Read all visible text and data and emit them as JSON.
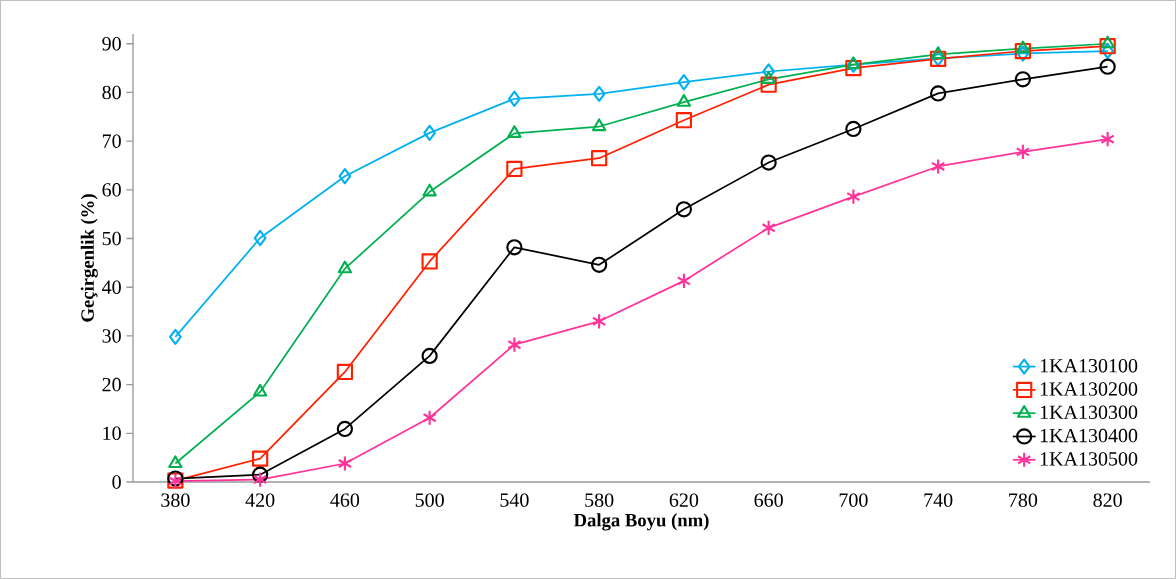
{
  "chart_data": {
    "type": "line",
    "xlabel": "Dalga Boyu (nm)",
    "ylabel": "Geçirgenlik (%)",
    "categories": [
      "380",
      "420",
      "460",
      "500",
      "540",
      "580",
      "620",
      "660",
      "700",
      "740",
      "780",
      "820"
    ],
    "ylim": [
      0,
      92
    ],
    "yticks": [
      0,
      10,
      20,
      30,
      40,
      50,
      60,
      70,
      80,
      90
    ],
    "grid": false,
    "legend": "bottom right",
    "series": [
      {
        "name": "1KA130100",
        "color": "#00b0f0",
        "marker": "diamond",
        "values": [
          29.8,
          50.1,
          62.8,
          71.7,
          78.7,
          79.7,
          82.1,
          84.3,
          85.7,
          87.0,
          88.0,
          88.5
        ]
      },
      {
        "name": "1KA130200",
        "color": "#ff2000",
        "marker": "square",
        "values": [
          0.3,
          4.8,
          22.6,
          45.3,
          64.3,
          66.5,
          74.3,
          81.6,
          85.0,
          86.9,
          88.5,
          89.5
        ]
      },
      {
        "name": "1KA130300",
        "color": "#00b050",
        "marker": "triangle",
        "values": [
          3.8,
          18.5,
          43.8,
          59.6,
          71.6,
          73.0,
          78.0,
          82.7,
          85.7,
          87.8,
          89.0,
          90.0
        ]
      },
      {
        "name": "1KA130400",
        "color": "#000000",
        "marker": "circle",
        "values": [
          0.7,
          1.5,
          10.9,
          25.9,
          48.2,
          44.6,
          56.0,
          65.6,
          72.5,
          79.8,
          82.7,
          85.3
        ]
      },
      {
        "name": "1KA130500",
        "color": "#ff3399",
        "marker": "cross",
        "values": [
          0.2,
          0.5,
          3.8,
          13.2,
          28.2,
          33.0,
          41.3,
          52.2,
          58.6,
          64.8,
          67.8,
          70.4
        ]
      }
    ]
  }
}
